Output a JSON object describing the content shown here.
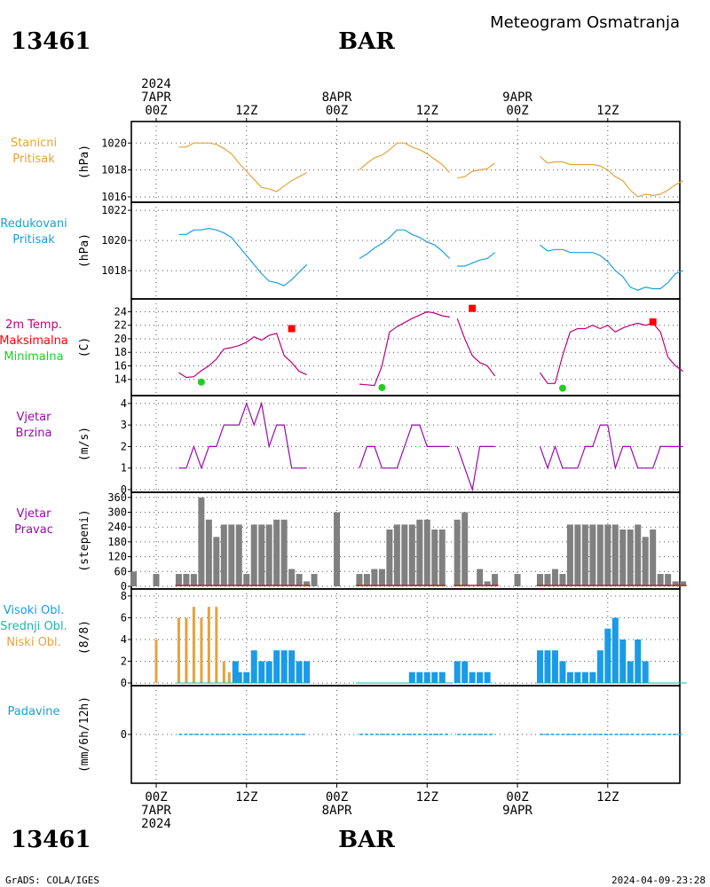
{
  "header": {
    "station_id": "13461",
    "station_name": "BAR",
    "title": "Meteogram Osmatranja"
  },
  "footer": {
    "left": "GrADS: COLA/IGES",
    "right": "2024-04-09-23:28"
  },
  "time_axis": {
    "top_labels": [
      {
        "lines": [
          "2024",
          "7APR",
          "00Z"
        ],
        "h": 0
      },
      {
        "lines": [
          "12Z"
        ],
        "h": 12
      },
      {
        "lines": [
          "8APR",
          "00Z"
        ],
        "h": 24
      },
      {
        "lines": [
          "12Z"
        ],
        "h": 36
      },
      {
        "lines": [
          "9APR",
          "00Z"
        ],
        "h": 48
      },
      {
        "lines": [
          "12Z"
        ],
        "h": 60
      }
    ],
    "bottom_labels": [
      {
        "lines": [
          "00Z",
          "7APR",
          "2024"
        ],
        "h": 0
      },
      {
        "lines": [
          "12Z"
        ],
        "h": 12
      },
      {
        "lines": [
          "00Z",
          "8APR"
        ],
        "h": 24
      },
      {
        "lines": [
          "12Z"
        ],
        "h": 36
      },
      {
        "lines": [
          "00Z",
          "9APR"
        ],
        "h": 48
      },
      {
        "lines": [
          "12Z"
        ],
        "h": 60
      }
    ]
  },
  "colors": {
    "pressure_station": "#e6a23c",
    "pressure_reduced": "#1aa0d8",
    "temperature": "#c0007a",
    "max_temp": "#ff0000",
    "min_temp": "#22cc22",
    "wind": "#9a0ab0",
    "wind_dir_bar": "#808080",
    "wind_dir_base": "#cc2222",
    "cloud_high": "#1a9be6",
    "cloud_mid": "#22b3a3",
    "cloud_low": "#e6a23c",
    "precip": "#1aa0d8"
  },
  "chart_data": [
    {
      "type": "line",
      "labels": [
        "Stanicni",
        "Pritisak"
      ],
      "label_colors": [
        "#e6a23c",
        "#e6a23c"
      ],
      "ylabel": "(hPa)",
      "ylim": [
        1015.8,
        1021.4
      ],
      "yticks": [
        1016,
        1018,
        1020
      ],
      "series": [
        {
          "x": [
            3,
            4,
            5,
            6,
            7,
            8,
            9,
            10,
            11,
            12,
            13,
            14,
            15,
            16,
            17,
            18,
            19,
            20
          ],
          "y": [
            1019.7,
            1019.7,
            1020.0,
            1020.0,
            1020.0,
            1019.9,
            1019.6,
            1019.2,
            1018.5,
            1017.9,
            1017.3,
            1016.7,
            1016.6,
            1016.4,
            1016.8,
            1017.2,
            1017.5,
            1017.8
          ]
        },
        {
          "x": [
            27,
            28,
            29,
            30,
            31,
            32,
            33,
            34,
            35,
            36,
            37,
            38,
            39
          ],
          "y": [
            1018.0,
            1018.5,
            1018.9,
            1019.1,
            1019.5,
            1020.0,
            1020.0,
            1019.7,
            1019.5,
            1019.2,
            1018.8,
            1018.4,
            1017.8
          ]
        },
        {
          "x": [
            40,
            41,
            42,
            43,
            44,
            45
          ],
          "y": [
            1017.4,
            1017.5,
            1017.9,
            1018.0,
            1018.1,
            1018.5
          ]
        },
        {
          "x": [
            51,
            52,
            53,
            54,
            55,
            56,
            57,
            58,
            59,
            60,
            61,
            62,
            63,
            64,
            65,
            66,
            67,
            68
          ],
          "y": [
            1019.0,
            1018.5,
            1018.6,
            1018.6,
            1018.4,
            1018.4,
            1018.4,
            1018.4,
            1018.3,
            1018.0,
            1017.5,
            1017.2,
            1016.5,
            1016.0,
            1016.2,
            1016.1,
            1016.2,
            1016.5
          ]
        },
        {
          "x": [
            68,
            69,
            70
          ],
          "y": [
            1016.5,
            1016.9,
            1017.2
          ]
        }
      ]
    },
    {
      "type": "line",
      "labels": [
        "Redukovani",
        "Pritisak"
      ],
      "label_colors": [
        "#1aa0d8",
        "#1aa0d8"
      ],
      "ylabel": "(hPa)",
      "ylim": [
        1016.3,
        1022.3
      ],
      "yticks": [
        1018,
        1020,
        1022
      ],
      "series": [
        {
          "x": [
            3,
            4,
            5,
            6,
            7,
            8,
            9,
            10,
            11,
            12,
            13,
            14,
            15,
            16,
            17,
            18,
            19,
            20
          ],
          "y": [
            1020.4,
            1020.4,
            1020.7,
            1020.7,
            1020.8,
            1020.7,
            1020.5,
            1020.2,
            1019.6,
            1019.0,
            1018.4,
            1017.8,
            1017.3,
            1017.2,
            1017.0,
            1017.4,
            1017.9,
            1018.4
          ]
        },
        {
          "x": [
            27,
            28,
            29,
            30,
            31,
            32,
            33,
            34,
            35,
            36,
            37,
            38,
            39
          ],
          "y": [
            1018.8,
            1019.1,
            1019.5,
            1019.8,
            1020.2,
            1020.7,
            1020.7,
            1020.4,
            1020.2,
            1019.9,
            1019.7,
            1019.3,
            1018.8
          ]
        },
        {
          "x": [
            40,
            41,
            42,
            43,
            44,
            45
          ],
          "y": [
            1018.3,
            1018.3,
            1018.5,
            1018.7,
            1018.8,
            1019.2
          ]
        },
        {
          "x": [
            51,
            52,
            53,
            54,
            55,
            56,
            57,
            58,
            59,
            60,
            61,
            62,
            63,
            64,
            65,
            66,
            67,
            68
          ],
          "y": [
            1019.7,
            1019.3,
            1019.4,
            1019.4,
            1019.2,
            1019.2,
            1019.2,
            1019.2,
            1019.0,
            1018.6,
            1018.0,
            1017.6,
            1016.9,
            1016.7,
            1016.9,
            1016.8,
            1016.8,
            1017.2
          ]
        },
        {
          "x": [
            68,
            69,
            70
          ],
          "y": [
            1017.2,
            1017.8,
            1018.0
          ]
        }
      ]
    },
    {
      "type": "line",
      "labels": [
        "2m Temp.",
        "Maksimalna",
        "Minimalna"
      ],
      "label_colors": [
        "#c0007a",
        "#ff0000",
        "#22cc22"
      ],
      "ylabel": "(C)",
      "ylim": [
        12,
        25.5
      ],
      "yticks": [
        14,
        16,
        18,
        20,
        22,
        24
      ],
      "series": [
        {
          "x": [
            3,
            4,
            5,
            6,
            7,
            8,
            9,
            10,
            11,
            12,
            13,
            14,
            15,
            16,
            17,
            18,
            19,
            20
          ],
          "y": [
            15.0,
            14.3,
            14.4,
            15.3,
            16.0,
            17.0,
            18.5,
            18.7,
            19.0,
            19.5,
            20.3,
            19.8,
            20.5,
            20.8,
            17.5,
            16.5,
            15.2,
            14.7
          ]
        },
        {
          "x": [
            27,
            28,
            29,
            30,
            31,
            32,
            33,
            34,
            35,
            36,
            37,
            38,
            39
          ],
          "y": [
            13.3,
            13.2,
            13.1,
            16.0,
            21.0,
            21.8,
            22.4,
            23.0,
            23.5,
            24.0,
            23.8,
            23.4,
            23.2
          ]
        },
        {
          "x": [
            40,
            41,
            42,
            43,
            44,
            45
          ],
          "y": [
            23.0,
            20.0,
            17.5,
            16.5,
            16.0,
            14.5
          ]
        },
        {
          "x": [
            51,
            52,
            53,
            54,
            55,
            56,
            57,
            58,
            59,
            60,
            61,
            62,
            63,
            64,
            65,
            66,
            67,
            68
          ],
          "y": [
            15.0,
            13.4,
            13.4,
            17.5,
            21.0,
            21.5,
            21.5,
            22.0,
            21.5,
            22.0,
            21.0,
            21.6,
            22.0,
            22.3,
            22.0,
            22.3,
            21.0,
            17.3
          ]
        },
        {
          "x": [
            68,
            69,
            70
          ],
          "y": [
            17.3,
            16.0,
            15.2
          ]
        }
      ],
      "max_points": [
        {
          "x": 18,
          "y": 21.5
        },
        {
          "x": 42,
          "y": 24.5
        },
        {
          "x": 66,
          "y": 22.5
        }
      ],
      "min_points": [
        {
          "x": 6,
          "y": 13.6
        },
        {
          "x": 30,
          "y": 12.8
        },
        {
          "x": 54,
          "y": 12.7
        }
      ]
    },
    {
      "type": "line",
      "labels": [
        "Vjetar",
        "Brzina"
      ],
      "label_colors": [
        "#9a0ab0",
        "#9a0ab0"
      ],
      "ylabel": "(m/s)",
      "ylim": [
        0,
        4.2
      ],
      "yticks": [
        0,
        1,
        2,
        3,
        4
      ],
      "series": [
        {
          "x": [
            3,
            4,
            5,
            6,
            7,
            8,
            9,
            10,
            11,
            12,
            13,
            14,
            15,
            16,
            17,
            18,
            19,
            20
          ],
          "y": [
            1,
            1,
            2,
            1,
            2,
            2,
            3,
            3,
            3,
            4,
            3,
            4,
            2,
            3,
            3,
            1,
            1,
            1
          ]
        },
        {
          "x": [
            27,
            28,
            29,
            30,
            31,
            32,
            33,
            34,
            35,
            36,
            37,
            38,
            39
          ],
          "y": [
            1,
            2,
            2,
            1,
            1,
            1,
            2,
            3,
            3,
            2,
            2,
            2,
            2
          ]
        },
        {
          "x": [
            40,
            41,
            42,
            43,
            44,
            45
          ],
          "y": [
            2,
            1,
            0,
            2,
            2,
            2
          ]
        },
        {
          "x": [
            51,
            52,
            53,
            54,
            55,
            56,
            57,
            58,
            59,
            60,
            61,
            62,
            63,
            64,
            65,
            66,
            67,
            68
          ],
          "y": [
            2,
            1,
            2,
            1,
            1,
            1,
            2,
            2,
            3,
            3,
            1,
            2,
            2,
            1,
            1,
            1,
            2,
            2
          ]
        },
        {
          "x": [
            68,
            69,
            70
          ],
          "y": [
            2,
            2,
            2
          ]
        }
      ]
    },
    {
      "type": "bar",
      "labels": [
        "Vjetar",
        "Pravac"
      ],
      "label_colors": [
        "#9a0ab0",
        "#9a0ab0"
      ],
      "ylabel": "(stepeni)",
      "ylim": [
        0,
        370
      ],
      "yticks": [
        0,
        60,
        120,
        180,
        240,
        300,
        360
      ],
      "x": [
        -3,
        0,
        3,
        4,
        5,
        6,
        7,
        8,
        9,
        10,
        11,
        12,
        13,
        14,
        15,
        16,
        17,
        18,
        19,
        20,
        21,
        24,
        27,
        28,
        29,
        30,
        31,
        32,
        33,
        34,
        35,
        36,
        37,
        38,
        39,
        40,
        41,
        42,
        43,
        44,
        45,
        48,
        51,
        52,
        53,
        54,
        55,
        56,
        57,
        58,
        59,
        60,
        61,
        62,
        63,
        64,
        65,
        66,
        67,
        68,
        69,
        70
      ],
      "values": [
        60,
        50,
        50,
        50,
        50,
        360,
        270,
        200,
        250,
        250,
        250,
        50,
        250,
        250,
        250,
        270,
        270,
        70,
        50,
        20,
        50,
        300,
        50,
        50,
        70,
        70,
        230,
        250,
        250,
        250,
        270,
        270,
        230,
        230,
        0,
        270,
        300,
        0,
        70,
        20,
        50,
        50,
        50,
        50,
        70,
        50,
        250,
        250,
        250,
        250,
        250,
        250,
        250,
        230,
        230,
        250,
        200,
        230,
        50,
        50,
        20,
        20
      ]
    },
    {
      "type": "bar",
      "labels": [
        "Visoki Obl.",
        "Srednji Obl.",
        "Niski Obl."
      ],
      "label_colors": [
        "#1a9be6",
        "#22b3a3",
        "#e6a23c"
      ],
      "ylabel": "(8/8)",
      "ylim": [
        0,
        8.4
      ],
      "yticks": [
        0,
        2,
        4,
        6,
        8
      ],
      "series": [
        {
          "name": "Niski Obl.",
          "x": [
            0,
            3,
            4,
            5,
            6,
            7,
            8,
            9,
            10
          ],
          "values": [
            4,
            6,
            6,
            7,
            6,
            7,
            7,
            2,
            1
          ]
        },
        {
          "name": "Visoki Obl.",
          "x": [
            10,
            11,
            12,
            13,
            14,
            15,
            16,
            17,
            18,
            19,
            20,
            34,
            35,
            36,
            37,
            38,
            40,
            41,
            42,
            43,
            44,
            51,
            52,
            53,
            54,
            55,
            56,
            57,
            58,
            59,
            60,
            61,
            62,
            63,
            64,
            65
          ],
          "values": [
            2,
            1,
            1,
            3,
            2,
            2,
            3,
            3,
            3,
            2,
            2,
            1,
            1,
            1,
            1,
            1,
            2,
            2,
            1,
            1,
            1,
            3,
            3,
            3,
            2,
            1,
            1,
            1,
            1,
            3,
            5,
            6,
            4,
            2,
            4,
            2
          ]
        }
      ]
    },
    {
      "type": "line",
      "labels": [
        "Padavine"
      ],
      "label_colors": [
        "#1aa0d8"
      ],
      "ylabel": "(mm/6h/12h)",
      "ylim": [
        -1,
        1
      ],
      "yticks": [
        0
      ],
      "series": [
        {
          "x": [
            3,
            20
          ],
          "y": [
            0,
            0
          ]
        },
        {
          "x": [
            27,
            39
          ],
          "y": [
            0,
            0
          ]
        },
        {
          "x": [
            40,
            45
          ],
          "y": [
            0,
            0
          ]
        },
        {
          "x": [
            51,
            70
          ],
          "y": [
            0,
            0
          ]
        }
      ]
    }
  ]
}
